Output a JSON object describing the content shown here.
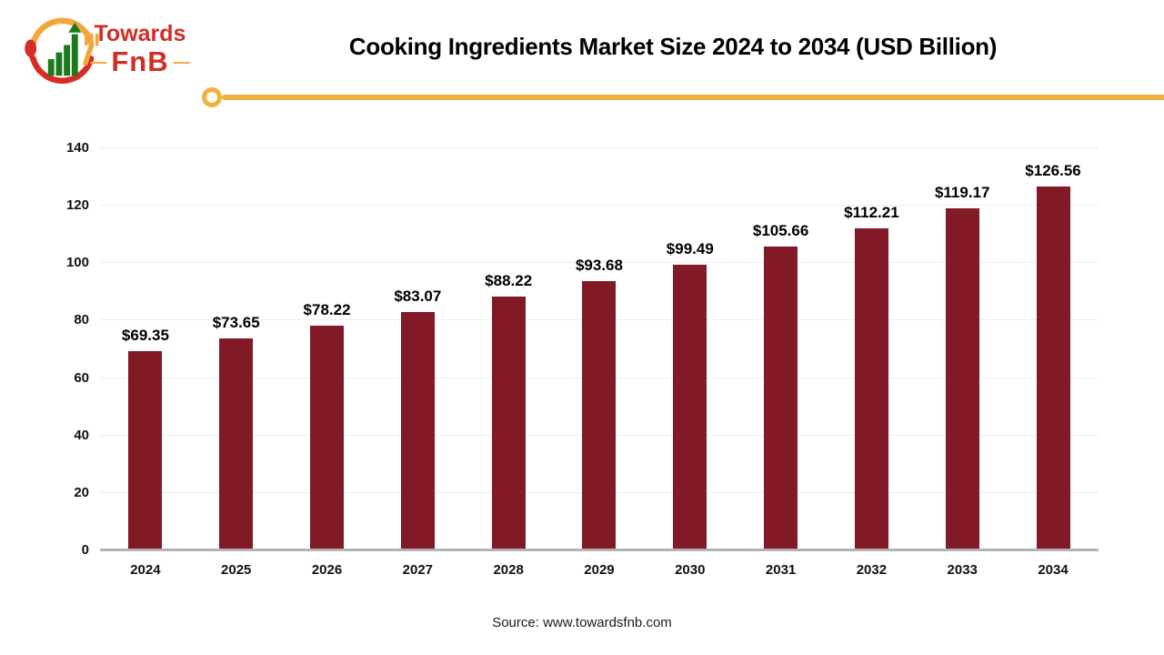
{
  "logo": {
    "brand_line1": "Towards",
    "brand_line2": "FnB",
    "dash": "—"
  },
  "header": {
    "title": "Cooking Ingredients Market Size 2024 to 2034 (USD Billion)"
  },
  "chart_data": {
    "type": "bar",
    "title": "Cooking Ingredients Market Size 2024 to 2034 (USD Billion)",
    "categories": [
      "2024",
      "2025",
      "2026",
      "2027",
      "2028",
      "2029",
      "2030",
      "2031",
      "2032",
      "2033",
      "2034"
    ],
    "values": [
      69.35,
      73.65,
      78.22,
      83.07,
      88.22,
      93.68,
      99.49,
      105.66,
      112.21,
      119.17,
      126.56
    ],
    "value_labels": [
      "$69.35",
      "$73.65",
      "$78.22",
      "$83.07",
      "$88.22",
      "$93.68",
      "$99.49",
      "$105.66",
      "$112.21",
      "$119.17",
      "$126.56"
    ],
    "xlabel": "",
    "ylabel": "",
    "ylim": [
      0,
      140
    ],
    "yticks": [
      0,
      20,
      40,
      60,
      80,
      100,
      120,
      140
    ],
    "grid": true,
    "legend": false,
    "bar_color": "#821926"
  },
  "footer": {
    "source_text": "Source: www.towardsfnb.com"
  },
  "colors": {
    "bar": "#821926",
    "accent_line": "#f0b23e",
    "brand_red": "#d02e26",
    "brand_yellow": "#f2a73c",
    "brand_green": "#1b7a1b",
    "axis_line": "#b3b3b3",
    "gridline": "#ededed",
    "title_text": "#000000"
  }
}
